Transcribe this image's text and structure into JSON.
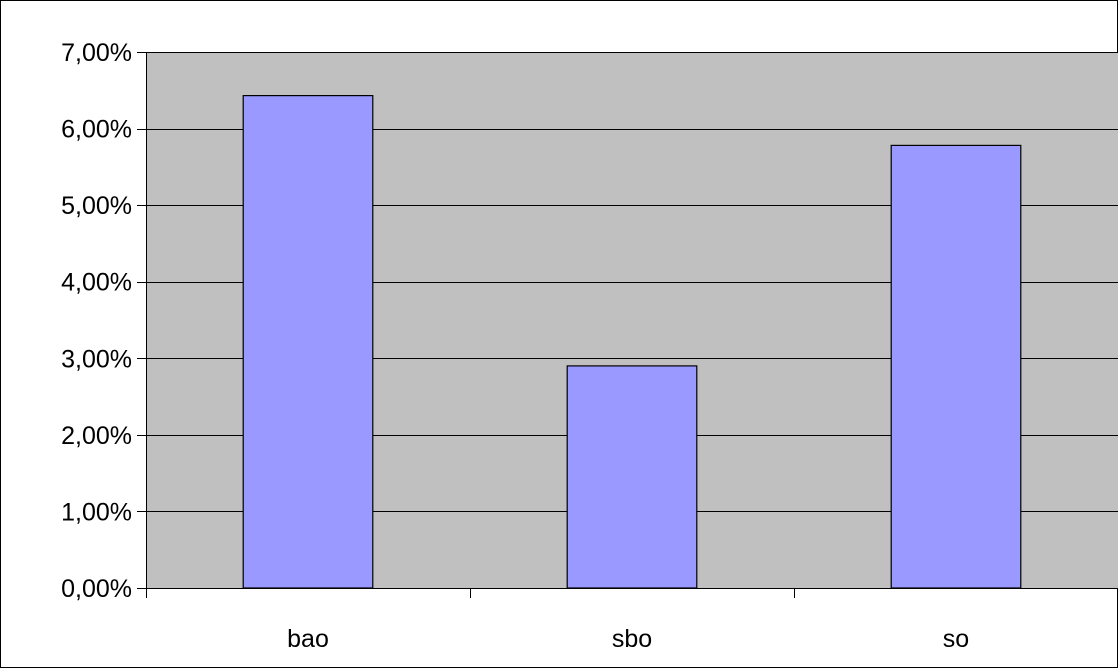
{
  "colors": {
    "plot_background": "#c0c0c0",
    "bar_fill": "#9999ff",
    "bar_stroke": "#000000",
    "gridline": "#000000",
    "axis": "#000000"
  },
  "chart_data": {
    "type": "bar",
    "title": "",
    "xlabel": "",
    "ylabel": "",
    "categories": [
      "bao",
      "sbo",
      "so"
    ],
    "values": [
      6.43,
      2.9,
      5.78
    ],
    "ylim": [
      0,
      7
    ],
    "y_ticks": [
      0,
      1,
      2,
      3,
      4,
      5,
      6,
      7
    ],
    "y_tick_labels": [
      "0,00%",
      "1,00%",
      "2,00%",
      "3,00%",
      "4,00%",
      "5,00%",
      "6,00%",
      "7,00%"
    ],
    "grid": true,
    "legend": "none"
  }
}
